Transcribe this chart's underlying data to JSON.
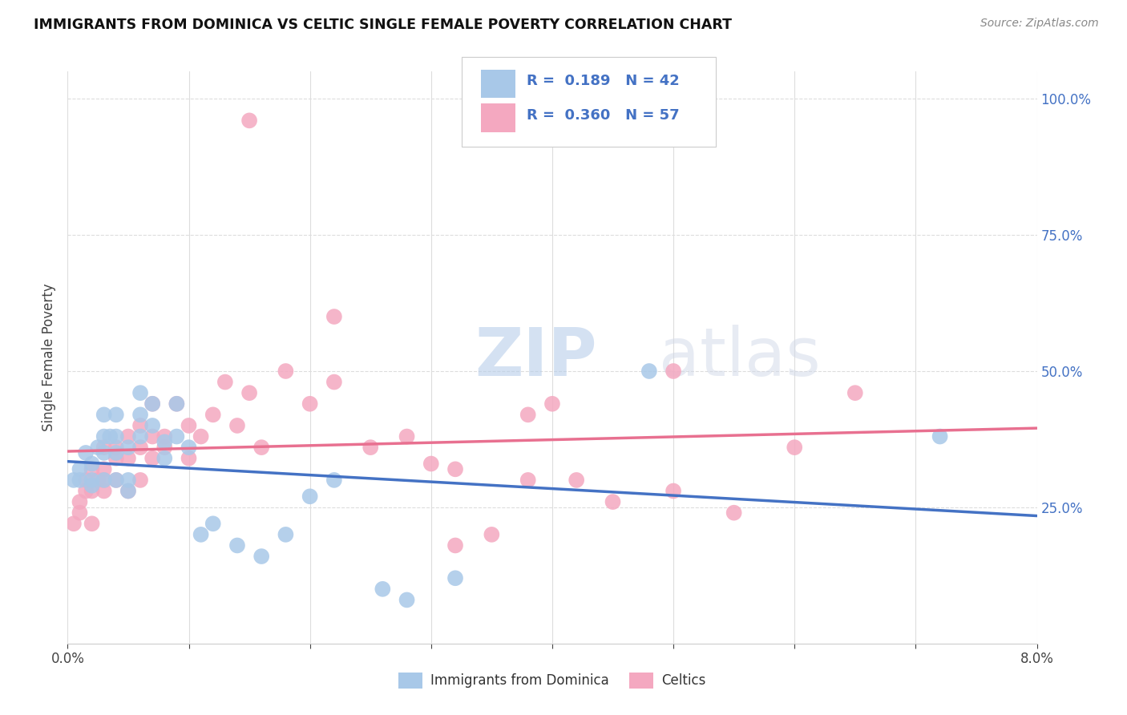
{
  "title": "IMMIGRANTS FROM DOMINICA VS CELTIC SINGLE FEMALE POVERTY CORRELATION CHART",
  "source": "Source: ZipAtlas.com",
  "ylabel": "Single Female Poverty",
  "legend_label1": "Immigrants from Dominica",
  "legend_label2": "Celtics",
  "R1": "0.189",
  "N1": "42",
  "R2": "0.360",
  "N2": "57",
  "color_blue": "#A8C8E8",
  "color_pink": "#F4A8C0",
  "color_blue_text": "#4472C4",
  "color_blue_line": "#4472C4",
  "color_pink_line": "#E87090",
  "xmin": 0.0,
  "xmax": 0.08,
  "ymin": 0.0,
  "ymax": 1.05,
  "ytick_values": [
    0.25,
    0.5,
    0.75,
    1.0
  ],
  "blue_x": [
    0.0005,
    0.001,
    0.001,
    0.0015,
    0.002,
    0.002,
    0.002,
    0.0025,
    0.003,
    0.003,
    0.003,
    0.003,
    0.0035,
    0.004,
    0.004,
    0.004,
    0.004,
    0.005,
    0.005,
    0.005,
    0.006,
    0.006,
    0.006,
    0.007,
    0.007,
    0.008,
    0.008,
    0.009,
    0.009,
    0.01,
    0.011,
    0.012,
    0.014,
    0.016,
    0.018,
    0.02,
    0.022,
    0.026,
    0.028,
    0.032,
    0.072,
    0.048
  ],
  "blue_y": [
    0.3,
    0.32,
    0.3,
    0.35,
    0.3,
    0.33,
    0.29,
    0.36,
    0.3,
    0.35,
    0.38,
    0.42,
    0.38,
    0.3,
    0.35,
    0.38,
    0.42,
    0.36,
    0.3,
    0.28,
    0.38,
    0.42,
    0.46,
    0.44,
    0.4,
    0.37,
    0.34,
    0.44,
    0.38,
    0.36,
    0.2,
    0.22,
    0.18,
    0.16,
    0.2,
    0.27,
    0.3,
    0.1,
    0.08,
    0.12,
    0.38,
    0.5
  ],
  "pink_x": [
    0.0005,
    0.001,
    0.001,
    0.0015,
    0.0015,
    0.002,
    0.002,
    0.002,
    0.0025,
    0.003,
    0.003,
    0.003,
    0.003,
    0.004,
    0.004,
    0.004,
    0.005,
    0.005,
    0.005,
    0.006,
    0.006,
    0.006,
    0.007,
    0.007,
    0.007,
    0.008,
    0.008,
    0.009,
    0.01,
    0.01,
    0.011,
    0.012,
    0.013,
    0.014,
    0.015,
    0.016,
    0.018,
    0.02,
    0.022,
    0.025,
    0.028,
    0.03,
    0.032,
    0.035,
    0.038,
    0.04,
    0.042,
    0.045,
    0.05,
    0.055,
    0.015,
    0.022,
    0.032,
    0.038,
    0.05,
    0.06,
    0.065
  ],
  "pink_y": [
    0.22,
    0.26,
    0.24,
    0.28,
    0.3,
    0.28,
    0.32,
    0.22,
    0.3,
    0.32,
    0.28,
    0.36,
    0.3,
    0.34,
    0.36,
    0.3,
    0.34,
    0.28,
    0.38,
    0.36,
    0.4,
    0.3,
    0.38,
    0.34,
    0.44,
    0.36,
    0.38,
    0.44,
    0.4,
    0.34,
    0.38,
    0.42,
    0.48,
    0.4,
    0.46,
    0.36,
    0.5,
    0.44,
    0.48,
    0.36,
    0.38,
    0.33,
    0.32,
    0.2,
    0.3,
    0.44,
    0.3,
    0.26,
    0.28,
    0.24,
    0.96,
    0.6,
    0.18,
    0.42,
    0.5,
    0.36,
    0.46
  ],
  "watermark": "ZIPatlas",
  "background_color": "#FFFFFF",
  "grid_color": "#DDDDDD"
}
